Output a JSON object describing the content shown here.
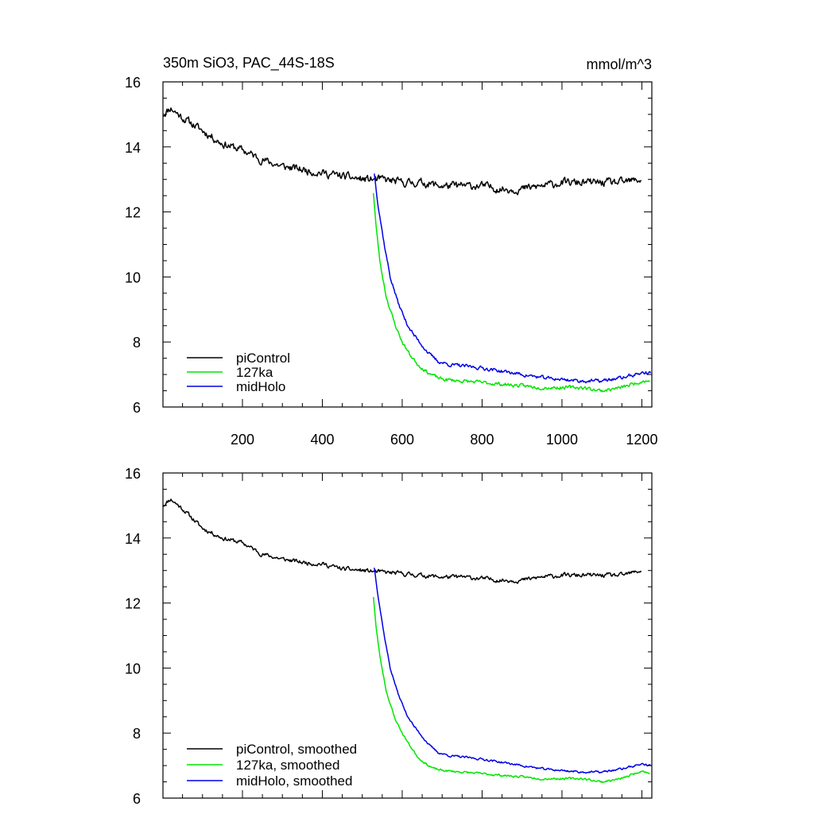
{
  "chart_data": [
    {
      "type": "line",
      "title": "350m SiO3, PAC_44S-18S",
      "units_label": "mmol/m^3",
      "xlim": [
        1,
        1225
      ],
      "ylim": [
        6,
        16
      ],
      "xticks": [
        200,
        400,
        600,
        800,
        1000,
        1200
      ],
      "xtick_labels": [
        "200",
        "400",
        "600",
        "800",
        "1000",
        "1200"
      ],
      "yticks": [
        6,
        8,
        10,
        12,
        14,
        16
      ],
      "ytick_labels": [
        "6",
        "8",
        "10",
        "12",
        "14",
        "16"
      ],
      "legend_position": "bottom-left",
      "series": [
        {
          "name": "piControl",
          "color": "#000000",
          "noise": 0.22,
          "seed": 11,
          "x": [
            1,
            20,
            50,
            100,
            150,
            200,
            250,
            300,
            350,
            400,
            450,
            500,
            550,
            600,
            650,
            700,
            750,
            800,
            850,
            900,
            950,
            1000,
            1050,
            1100,
            1150,
            1200
          ],
          "y": [
            15.0,
            15.2,
            14.9,
            14.5,
            14.1,
            13.9,
            13.6,
            13.4,
            13.3,
            13.2,
            13.1,
            13.0,
            13.0,
            12.9,
            12.9,
            12.8,
            12.8,
            12.8,
            12.7,
            12.7,
            12.8,
            12.9,
            12.9,
            12.9,
            12.9,
            13.0
          ]
        },
        {
          "name": "127ka",
          "color": "#00e600",
          "noise": 0.1,
          "seed": 23,
          "x": [
            528,
            535,
            545,
            560,
            580,
            600,
            620,
            640,
            660,
            680,
            700,
            750,
            800,
            850,
            900,
            950,
            1000,
            1050,
            1100,
            1150,
            1200,
            1220
          ],
          "y": [
            12.6,
            11.5,
            10.4,
            9.4,
            8.6,
            8.0,
            7.6,
            7.3,
            7.1,
            6.95,
            6.85,
            6.8,
            6.75,
            6.7,
            6.65,
            6.6,
            6.6,
            6.6,
            6.5,
            6.6,
            6.8,
            6.8
          ]
        },
        {
          "name": "midHolo",
          "color": "#0000e6",
          "noise": 0.1,
          "seed": 37,
          "x": [
            530,
            540,
            555,
            570,
            590,
            610,
            630,
            650,
            670,
            690,
            720,
            760,
            800,
            850,
            900,
            950,
            1000,
            1050,
            1100,
            1150,
            1200,
            1222
          ],
          "y": [
            13.2,
            12.2,
            11.0,
            10.0,
            9.2,
            8.6,
            8.2,
            7.9,
            7.6,
            7.4,
            7.3,
            7.25,
            7.2,
            7.1,
            7.0,
            6.9,
            6.85,
            6.8,
            6.8,
            6.9,
            7.05,
            7.05
          ]
        }
      ]
    },
    {
      "type": "line",
      "title": "",
      "units_label": "",
      "xlim": [
        1,
        1225
      ],
      "ylim": [
        6,
        16
      ],
      "xticks": [
        200,
        400,
        600,
        800,
        1000,
        1200
      ],
      "xtick_labels": [],
      "yticks": [
        6,
        8,
        10,
        12,
        14,
        16
      ],
      "ytick_labels": [
        "6",
        "8",
        "10",
        "12",
        "14",
        "16"
      ],
      "legend_position": "bottom-left",
      "series": [
        {
          "name": "piControl, smoothed",
          "color": "#000000",
          "noise": 0.12,
          "seed": 11,
          "x": [
            1,
            20,
            50,
            100,
            150,
            200,
            250,
            300,
            350,
            400,
            450,
            500,
            550,
            600,
            650,
            700,
            750,
            800,
            850,
            900,
            950,
            1000,
            1050,
            1100,
            1150,
            1200
          ],
          "y": [
            15.0,
            15.2,
            14.9,
            14.3,
            14.0,
            13.85,
            13.5,
            13.35,
            13.25,
            13.2,
            13.05,
            13.0,
            12.95,
            12.9,
            12.85,
            12.8,
            12.8,
            12.75,
            12.7,
            12.7,
            12.8,
            12.85,
            12.85,
            12.85,
            12.85,
            13.0
          ]
        },
        {
          "name": "127ka, smoothed",
          "color": "#00e600",
          "noise": 0.06,
          "seed": 23,
          "x": [
            528,
            535,
            545,
            560,
            580,
            600,
            620,
            640,
            660,
            680,
            700,
            750,
            800,
            850,
            900,
            950,
            1000,
            1050,
            1100,
            1150,
            1200,
            1220
          ],
          "y": [
            12.2,
            11.2,
            10.3,
            9.3,
            8.5,
            8.0,
            7.6,
            7.25,
            7.05,
            6.9,
            6.85,
            6.8,
            6.75,
            6.7,
            6.65,
            6.6,
            6.6,
            6.6,
            6.5,
            6.6,
            6.85,
            6.75
          ]
        },
        {
          "name": "midHolo, smoothed",
          "color": "#0000e6",
          "noise": 0.06,
          "seed": 37,
          "x": [
            530,
            540,
            555,
            570,
            590,
            610,
            630,
            650,
            670,
            690,
            720,
            760,
            800,
            850,
            900,
            950,
            1000,
            1050,
            1100,
            1150,
            1200,
            1222
          ],
          "y": [
            13.1,
            12.2,
            11.0,
            10.0,
            9.2,
            8.6,
            8.2,
            7.9,
            7.6,
            7.4,
            7.3,
            7.25,
            7.2,
            7.1,
            7.0,
            6.9,
            6.85,
            6.8,
            6.8,
            6.9,
            7.05,
            7.0
          ]
        }
      ]
    }
  ]
}
